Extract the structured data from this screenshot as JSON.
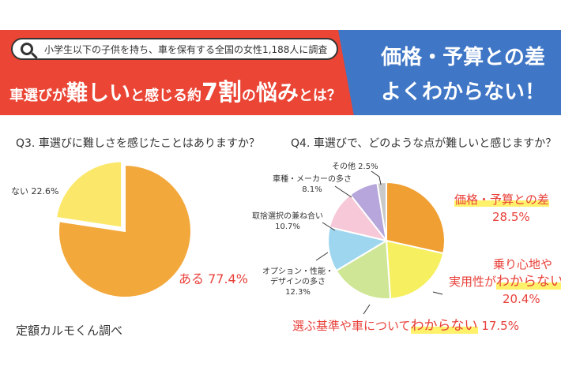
{
  "header": {
    "survey": "小学生以下の子供を持ち、車を保有する全国の女性1,188人に調査",
    "headline_parts": [
      "車選び",
      "が",
      "難しい",
      "と感じる約",
      "7割",
      "の",
      "悩み",
      "とは？"
    ],
    "answer_line1": "価格・予算との差",
    "answer_line2": "よくわからない！"
  },
  "q3": {
    "question": "Q3. 車選びに難しさを感じたことはありますか？",
    "labels": [
      "ない 22.6%",
      "ある 77.4%"
    ]
  },
  "q4": {
    "question": "Q4. 車選びで、どのような点が難しいと感じますか？",
    "labels": {
      "price_line1": "価格・予算との差",
      "price_line2": "28.5%",
      "ride_line1": "乗り心地や",
      "ride_line2a": "実用性が",
      "ride_line2b": "わからない",
      "ride_line3": "20.4%",
      "criteria_a": "選ぶ基準や車について",
      "criteria_b": "わからない",
      "criteria_c": " 17.5%",
      "option_line1": "オプション・性能・",
      "option_line2": "デザインの多さ",
      "option_line3": "12.3%",
      "tradeoff_line1": "取捨選択の兼ね合い",
      "tradeoff_line2": "10.7%",
      "models_line1": "車種・メーカーの多さ",
      "models_line2": "8.1%",
      "other": "その他 2.5%"
    }
  },
  "credit": "定額カルモくん調べ",
  "chart_data": [
    {
      "type": "pie",
      "title": "Q3. 車選びに難しさを感じたことはありますか？",
      "categories": [
        "ある",
        "ない"
      ],
      "values": [
        77.4,
        22.6
      ],
      "colors": [
        "#f3a83c",
        "#fbe86a"
      ],
      "legend": "none"
    },
    {
      "type": "pie",
      "title": "Q4. 車選びで、どのような点が難しいと感じますか？",
      "categories": [
        "価格・予算との差",
        "乗り心地や実用性がわからない",
        "選ぶ基準や車についてわからない",
        "オプション・性能・デザインの多さ",
        "取捨選択の兼ね合い",
        "車種・メーカーの多さ",
        "その他"
      ],
      "values": [
        28.5,
        20.4,
        17.5,
        12.3,
        10.7,
        8.1,
        2.5
      ],
      "colors": [
        "#f0a033",
        "#f6ef5f",
        "#cfe696",
        "#9fd6ef",
        "#f6c8d8",
        "#b6a6dc",
        "#c9c9c9"
      ],
      "legend": "none"
    }
  ]
}
